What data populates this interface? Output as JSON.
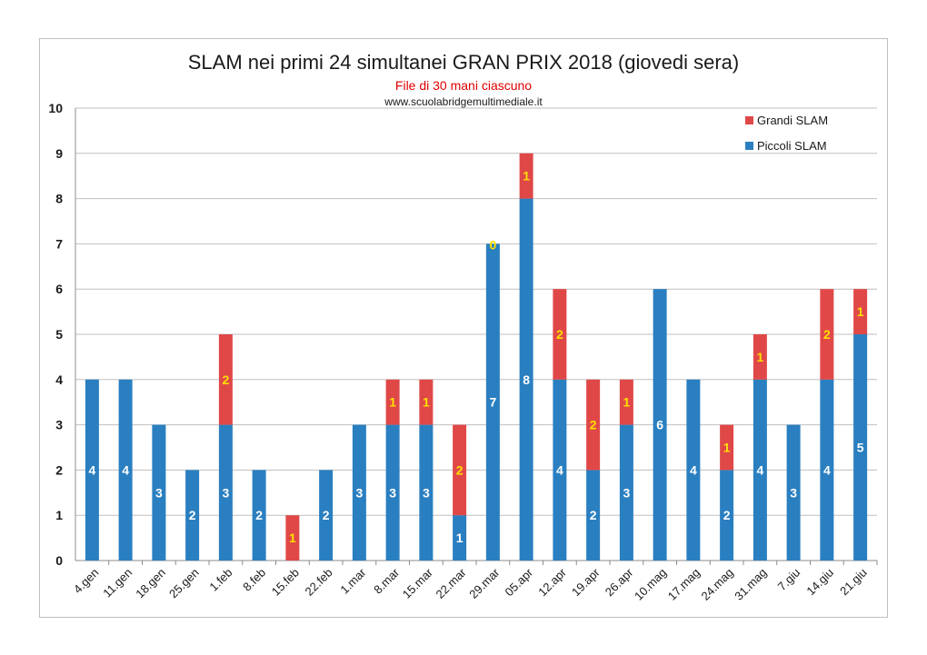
{
  "colors": {
    "piccoli": "#2a7fc0",
    "grandi": "#e04848",
    "grid": "#bfbfbf",
    "axis": "#8c8c8c"
  },
  "chart_data": {
    "type": "bar",
    "stacked": true,
    "title": "SLAM nei primi 24 simultanei GRAN PRIX 2018 (giovedi sera)",
    "subtitle": "File di 30 mani ciascuno",
    "website": "www.scuolabridgemultimediale.it",
    "xlabel": "",
    "ylabel": "",
    "ylim": [
      0,
      10
    ],
    "yticks": [
      "0",
      "1",
      "2",
      "3",
      "4",
      "5",
      "6",
      "7",
      "8",
      "9",
      "10"
    ],
    "grid": true,
    "legend_position": "top-right",
    "categories": [
      "4.gen",
      "11.gen",
      "18.gen",
      "25.gen",
      "1.feb",
      "8.feb",
      "15.feb",
      "22.feb",
      "1.mar",
      "8.mar",
      "15.mar",
      "22.mar",
      "29.mar",
      "05.apr",
      "12.apr",
      "19.apr",
      "26.apr",
      "10.mag",
      "17.mag",
      "24.mag",
      "31.mag",
      "7.giu",
      "14.giu",
      "21.giu"
    ],
    "series": [
      {
        "name": "Piccoli SLAM",
        "values": [
          4,
          4,
          3,
          2,
          3,
          2,
          0,
          2,
          3,
          3,
          3,
          1,
          7,
          8,
          4,
          2,
          3,
          6,
          4,
          2,
          4,
          3,
          4,
          5
        ]
      },
      {
        "name": "Grandi SLAM",
        "values": [
          0,
          0,
          0,
          0,
          2,
          0,
          1,
          0,
          0,
          1,
          1,
          2,
          0,
          1,
          2,
          2,
          1,
          0,
          0,
          1,
          1,
          0,
          2,
          1
        ]
      }
    ],
    "legend_order": [
      "Grandi SLAM",
      "Piccoli SLAM"
    ],
    "data_labels": {
      "Piccoli SLAM": [
        "4",
        "4",
        "3",
        "2",
        "3",
        "2",
        "",
        "2",
        "3",
        "3",
        "3",
        "1",
        "7",
        "8",
        "4",
        "2",
        "3",
        "6",
        "4",
        "2",
        "4",
        "3",
        "4",
        "5"
      ],
      "Grandi SLAM": [
        "",
        "",
        "",
        "",
        "2",
        "",
        "1",
        "",
        "",
        "1",
        "1",
        "2",
        "0",
        "1",
        "2",
        "2",
        "1",
        "",
        "",
        "1",
        "1",
        "",
        "2",
        "1"
      ]
    }
  }
}
